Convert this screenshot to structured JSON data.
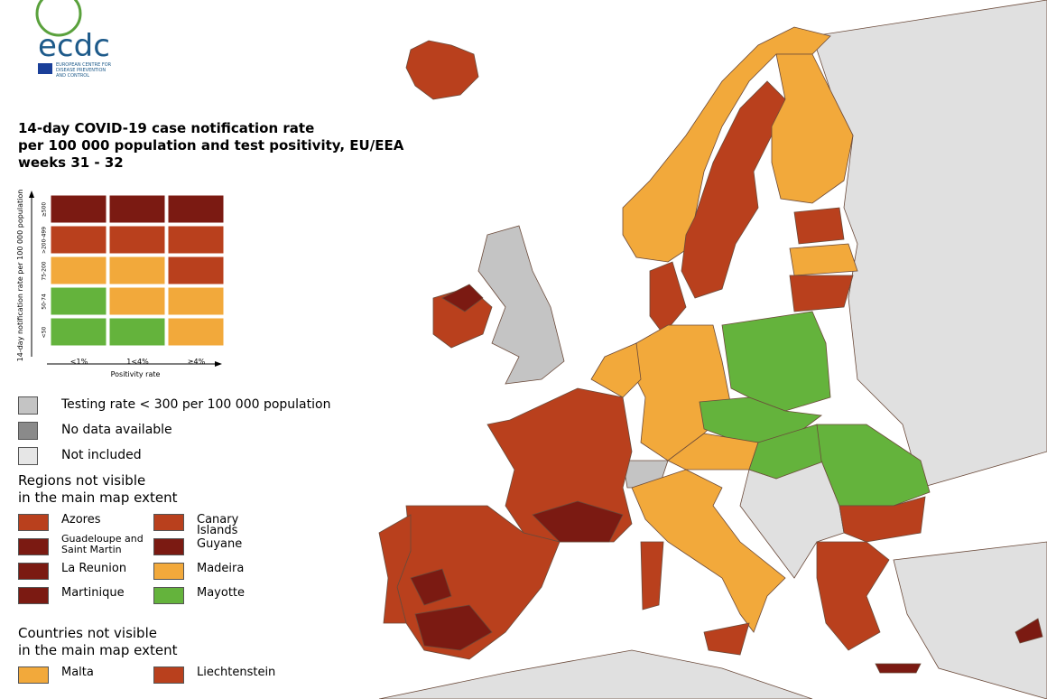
{
  "logo": {
    "name": "ecdc",
    "subtitle": [
      "EUROPEAN CENTRE FOR",
      "DISEASE PREVENTION",
      "AND CONTROL"
    ]
  },
  "title": [
    "14-day COVID-19 case notification rate",
    "per 100 000 population and test positivity, EU/EEA",
    "weeks 31 - 32"
  ],
  "matrix": {
    "y_label": "14-day notification rate per 100 000 population",
    "x_label": "Positivity rate",
    "columns": [
      "<1%",
      "1<4%",
      "≥4%"
    ],
    "rows": [
      {
        "label": "≥500",
        "colors": [
          "#7b1a12",
          "#7b1a12",
          "#7b1a12"
        ]
      },
      {
        "label": ">200-499",
        "colors": [
          "#b9401d",
          "#b9401d",
          "#b9401d"
        ]
      },
      {
        "label": "75-200",
        "colors": [
          "#f2a93b",
          "#f2a93b",
          "#b9401d"
        ]
      },
      {
        "label": "50-74",
        "colors": [
          "#64b33c",
          "#f2a93b",
          "#f2a93b"
        ]
      },
      {
        "label": "<50",
        "colors": [
          "#64b33c",
          "#64b33c",
          "#f2a93b"
        ]
      }
    ]
  },
  "legend": [
    {
      "label": "Testing rate < 300 per 100 000 population",
      "color": "#c4c4c4"
    },
    {
      "label": "No data available",
      "color": "#8a8a8a"
    },
    {
      "label": "Not included",
      "color": "#e6e6e6"
    }
  ],
  "regions": {
    "title": [
      "Regions not visible",
      "in the main map extent"
    ],
    "items": [
      {
        "label": "Azores",
        "color": "#b9401d"
      },
      {
        "label": "Canary Islands",
        "color": "#b9401d"
      },
      {
        "label": "Guadeloupe and Saint Martin",
        "color": "#7b1a12"
      },
      {
        "label": "Guyane",
        "color": "#7b1a12"
      },
      {
        "label": "La Reunion",
        "color": "#7b1a12"
      },
      {
        "label": "Madeira",
        "color": "#f2a93b"
      },
      {
        "label": "Martinique",
        "color": "#7b1a12"
      },
      {
        "label": "Mayotte",
        "color": "#64b33c"
      }
    ]
  },
  "countries": {
    "title": [
      "Countries not visible",
      "in the main map extent"
    ],
    "items": [
      {
        "label": "Malta",
        "color": "#f2a93b"
      },
      {
        "label": "Liechtenstein",
        "color": "#b9401d"
      }
    ]
  }
}
